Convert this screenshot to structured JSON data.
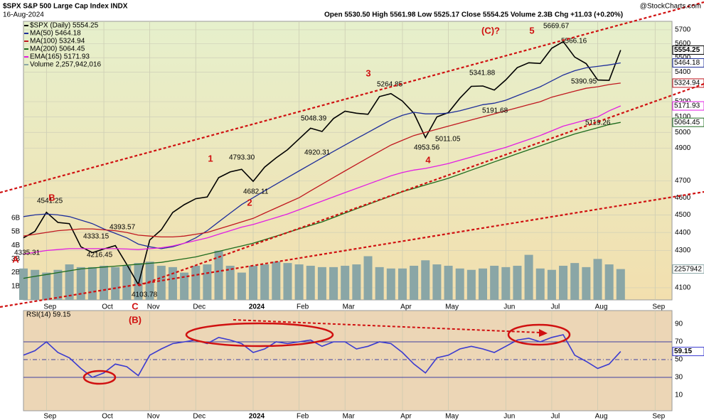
{
  "chart_data": [
    {
      "type": "line",
      "title": "$SPX S&P 500 Large Cap Index INDX",
      "subtitle": "16-Aug-2024",
      "quote": "Open 5530.50 High 5561.98 Low 5525.17 Close 5554.25 Volume 2.3B Chg +11.03 (+0.20%)",
      "watermark": "@StockCharts.com",
      "categories": [
        null,
        null,
        "Sep",
        null,
        null,
        null,
        null,
        "Oct",
        null,
        null,
        null,
        "Nov",
        null,
        null,
        null,
        "Dec",
        null,
        null,
        null,
        null,
        "2024",
        null,
        null,
        null,
        "Feb",
        null,
        null,
        null,
        "Mar",
        null,
        null,
        null,
        null,
        "Apr",
        null,
        null,
        null,
        "May",
        null,
        null,
        null,
        null,
        "Jun",
        null,
        null,
        null,
        "Jul",
        null,
        null,
        null,
        "Aug",
        null,
        null,
        null,
        null,
        "Sep",
        null
      ],
      "log": true,
      "ylim": [
        4037,
        5762
      ],
      "yticks": [
        4100,
        4300,
        4400,
        4500,
        4600,
        4700,
        4900,
        5000,
        5100,
        5200,
        5400,
        5500,
        5600,
        5700
      ],
      "y2lim": [
        0,
        20.4
      ],
      "y2ticks": [
        {
          "value": 1,
          "label": "1B"
        },
        {
          "value": 2,
          "label": "2B"
        },
        {
          "value": 3,
          "label": "3B"
        },
        {
          "value": 4,
          "label": "4B"
        },
        {
          "value": 5,
          "label": "5B"
        },
        {
          "value": 6,
          "label": "6B"
        }
      ],
      "grid": true,
      "series": [
        {
          "name": "$SPX (Daily) 5554.25",
          "color": "#000000",
          "end_label": "5554.25",
          "values": [
            4370,
            4406,
            4515,
            4457,
            4450,
            4320,
            4288,
            4308,
            4327,
            4224,
            4117,
            4358,
            4415,
            4514,
            4559,
            4594,
            4604,
            4719,
            4754,
            4770,
            4697,
            4783,
            4840,
            4891,
            4959,
            5027,
            5006,
            5089,
            5137,
            5124,
            5117,
            5234,
            5254,
            5204,
            5123,
            4967,
            5100,
            5128,
            5223,
            5303,
            5305,
            5278,
            5347,
            5431,
            5465,
            5460,
            5567,
            5615,
            5505,
            5459,
            5346,
            5344,
            5554.25,
            null,
            null,
            null,
            null
          ]
        },
        {
          "name": "MA(50) 5464.18",
          "color": "#1f2f9a",
          "end_label": "5464.18",
          "values": [
            4490,
            4500,
            4505,
            4500,
            4490,
            4470,
            4450,
            4420,
            4395,
            4370,
            4335,
            4320,
            4310,
            4320,
            4340,
            4370,
            4410,
            4460,
            4510,
            4560,
            4600,
            4640,
            4680,
            4720,
            4760,
            4800,
            4840,
            4880,
            4920,
            4960,
            5000,
            5040,
            5080,
            5110,
            5130,
            5120,
            5120,
            5125,
            5140,
            5160,
            5180,
            5190,
            5210,
            5240,
            5270,
            5300,
            5340,
            5380,
            5410,
            5430,
            5440,
            5450,
            5464.18,
            null,
            null,
            null,
            null
          ]
        },
        {
          "name": "MA(100) 5324.94",
          "color": "#c0181f",
          "end_label": "5324.94",
          "values": [
            4380,
            4390,
            4400,
            4410,
            4415,
            4420,
            4420,
            4415,
            4410,
            4400,
            4385,
            4380,
            4375,
            4375,
            4380,
            4390,
            4400,
            4420,
            4440,
            4460,
            4480,
            4510,
            4540,
            4570,
            4600,
            4640,
            4680,
            4720,
            4760,
            4800,
            4840,
            4880,
            4920,
            4950,
            4980,
            5000,
            5020,
            5040,
            5060,
            5080,
            5100,
            5120,
            5140,
            5160,
            5180,
            5200,
            5230,
            5250,
            5270,
            5290,
            5300,
            5315,
            5324.94,
            null,
            null,
            null,
            null
          ]
        },
        {
          "name": "MA(200) 5064.45",
          "color": "#1d6b1d",
          "end_label": "5064.45",
          "values": [
            4150,
            4160,
            4170,
            4180,
            4190,
            4200,
            4205,
            4210,
            4215,
            4220,
            4225,
            4230,
            4235,
            4245,
            4255,
            4265,
            4280,
            4295,
            4310,
            4325,
            4340,
            4360,
            4380,
            4400,
            4420,
            4440,
            4460,
            4485,
            4510,
            4535,
            4560,
            4585,
            4610,
            4635,
            4655,
            4675,
            4695,
            4715,
            4740,
            4765,
            4790,
            4815,
            4840,
            4865,
            4890,
            4915,
            4940,
            4965,
            4990,
            5010,
            5030,
            5050,
            5064.45,
            null,
            null,
            null,
            null
          ]
        },
        {
          "name": "EMA(165) 5171.93",
          "color": "#e21ee2",
          "end_label": "5171.93",
          "values": [
            4280,
            4290,
            4300,
            4305,
            4310,
            4310,
            4310,
            4310,
            4310,
            4308,
            4305,
            4310,
            4315,
            4325,
            4340,
            4355,
            4370,
            4390,
            4410,
            4430,
            4445,
            4465,
            4485,
            4505,
            4530,
            4555,
            4580,
            4605,
            4630,
            4655,
            4680,
            4705,
            4730,
            4750,
            4765,
            4775,
            4790,
            4805,
            4825,
            4845,
            4865,
            4885,
            4905,
            4930,
            4955,
            4980,
            5010,
            5040,
            5060,
            5080,
            5100,
            5140,
            5171.93,
            null,
            null,
            null,
            null
          ]
        },
        {
          "name": "Volume 2,257,942,016",
          "color": "#8aa6a6",
          "axis": "y2",
          "kind": "bar",
          "end_label": "2257942",
          "values": [
            2.3,
            2.2,
            2.0,
            2.2,
            2.6,
            2.4,
            2.4,
            2.5,
            2.4,
            2.5,
            2.7,
            2.8,
            2.5,
            2.4,
            2.0,
            2.5,
            2.6,
            3.6,
            2.5,
            2.0,
            2.5,
            2.6,
            2.8,
            2.7,
            2.6,
            2.5,
            2.4,
            2.4,
            2.5,
            2.6,
            3.2,
            2.4,
            2.3,
            2.3,
            2.5,
            2.9,
            2.6,
            2.5,
            2.3,
            2.2,
            2.3,
            2.5,
            2.4,
            2.5,
            3.3,
            2.3,
            2.2,
            2.5,
            2.7,
            2.4,
            3.0,
            2.6,
            2.257942016,
            null,
            null,
            null,
            null
          ]
        }
      ],
      "price_labels": [
        "4541.25",
        "4335.31",
        "4393.57",
        "4333.15",
        "4216.45",
        "4103.78",
        "4793.30",
        "4682.11",
        "5048.39",
        "4920.31",
        "5264.85",
        "4953.56",
        "5011.05",
        "5341.88",
        "5191.68",
        "5669.67",
        "5566.16",
        "5390.95",
        "5119.26"
      ],
      "wave_labels": [
        "B",
        "A",
        "C",
        "(B)",
        "1",
        "2",
        "3",
        "4",
        "(C)?",
        "5"
      ]
    },
    {
      "type": "line",
      "title": "RSI(14) 59.15",
      "categories": [
        null,
        null,
        "Sep",
        null,
        null,
        null,
        null,
        "Oct",
        null,
        null,
        null,
        "Nov",
        null,
        null,
        null,
        "Dec",
        null,
        null,
        null,
        null,
        "2024",
        null,
        null,
        null,
        "Feb",
        null,
        null,
        null,
        "Mar",
        null,
        null,
        null,
        null,
        "Apr",
        null,
        null,
        null,
        "May",
        null,
        null,
        null,
        null,
        "Jun",
        null,
        null,
        null,
        "Jul",
        null,
        null,
        null,
        "Aug",
        null,
        null,
        null,
        null,
        "Sep",
        null
      ],
      "ylim": [
        -7.6,
        105.2
      ],
      "yticks": [
        10,
        30,
        50,
        70,
        90
      ],
      "reference_lines": [
        30,
        50,
        70
      ],
      "series": [
        {
          "name": "RSI(14)",
          "color": "#3a3ad0",
          "end_label": "59.15",
          "values": [
            55,
            60,
            70,
            58,
            52,
            40,
            30,
            35,
            45,
            42,
            32,
            55,
            62,
            68,
            70,
            72,
            68,
            75,
            72,
            68,
            58,
            62,
            70,
            68,
            70,
            72,
            65,
            70,
            70,
            62,
            65,
            70,
            68,
            58,
            45,
            35,
            52,
            55,
            62,
            65,
            62,
            58,
            65,
            72,
            74,
            70,
            75,
            78,
            55,
            48,
            40,
            45,
            59.15,
            null,
            null,
            null,
            null
          ]
        }
      ]
    }
  ]
}
